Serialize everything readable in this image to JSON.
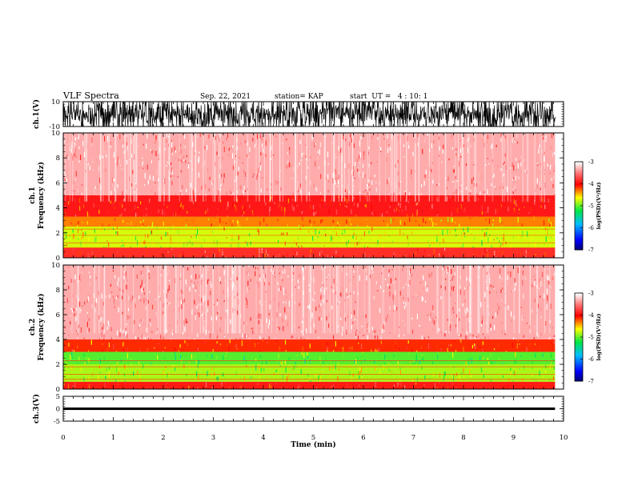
{
  "header": {
    "title": "VLF Spectra",
    "date": "Sep. 22, 2021",
    "station": "station= KAP",
    "start": "start  UT =   4 : 10: 1"
  },
  "chart_data": [
    {
      "type": "line",
      "panel": "ch1-waveform",
      "ylabel": "ch.1(V)",
      "ylim": [
        -10,
        10
      ],
      "yticks": [
        "10",
        "-10"
      ],
      "xlim": [
        0,
        10
      ],
      "signal_range": [
        -10,
        10
      ],
      "data_end_min": 9.83,
      "color": "#000000"
    },
    {
      "type": "heatmap",
      "panel": "ch1-spectrogram",
      "ylabel": "ch.1\nFrequency  (kHz)",
      "ylim": [
        0,
        10
      ],
      "yticks": [
        "0",
        "2",
        "4",
        "6",
        "8",
        "10"
      ],
      "xlim": [
        0,
        10
      ],
      "data_end_min": 9.83,
      "bands": [
        {
          "from_khz": 0,
          "to_khz": 0.8,
          "level": -3.8
        },
        {
          "from_khz": 0.8,
          "to_khz": 2.5,
          "level": -4.7
        },
        {
          "from_khz": 2.5,
          "to_khz": 3.3,
          "level": -4.3
        },
        {
          "from_khz": 3.3,
          "to_khz": 5,
          "level": -3.9
        },
        {
          "from_khz": 5,
          "to_khz": 10,
          "level": -3.3
        }
      ],
      "colorbar": {
        "label": "log(PSD)(V²/Hz)",
        "range": [
          -7,
          -3
        ],
        "ticks": [
          "-3",
          "-4",
          "-5",
          "-6",
          "-7"
        ]
      }
    },
    {
      "type": "heatmap",
      "panel": "ch2-spectrogram",
      "ylabel": "ch.2\nFrequency  (kHz)",
      "ylim": [
        0,
        10
      ],
      "yticks": [
        "0",
        "2",
        "4",
        "6",
        "8",
        "10"
      ],
      "xlim": [
        0,
        10
      ],
      "data_end_min": 9.83,
      "bands": [
        {
          "from_khz": 0,
          "to_khz": 0.6,
          "level": -3.9
        },
        {
          "from_khz": 0.6,
          "to_khz": 2.0,
          "level": -4.8
        },
        {
          "from_khz": 2.0,
          "to_khz": 3.0,
          "level": -5.0
        },
        {
          "from_khz": 3.0,
          "to_khz": 4.0,
          "level": -4.1
        },
        {
          "from_khz": 4.0,
          "to_khz": 10,
          "level": -3.3
        }
      ],
      "colorbar": {
        "label": "log(PSD)(V²/Hz)",
        "range": [
          -7,
          -3
        ],
        "ticks": [
          "-3",
          "-4",
          "-5",
          "-6",
          "-7"
        ]
      }
    },
    {
      "type": "line",
      "panel": "ch3-waveform",
      "ylabel": "ch.3(V)",
      "ylim": [
        -5,
        5
      ],
      "yticks": [
        "5",
        "0",
        "-5"
      ],
      "xlim": [
        0,
        10
      ],
      "signal_range": [
        -0.5,
        0.5
      ],
      "data_end_min": 9.83,
      "xlabel": "Time  (min)",
      "xticks": [
        "0",
        "1",
        "2",
        "3",
        "4",
        "5",
        "6",
        "7",
        "8",
        "9",
        "10"
      ],
      "color": "#000000"
    }
  ]
}
